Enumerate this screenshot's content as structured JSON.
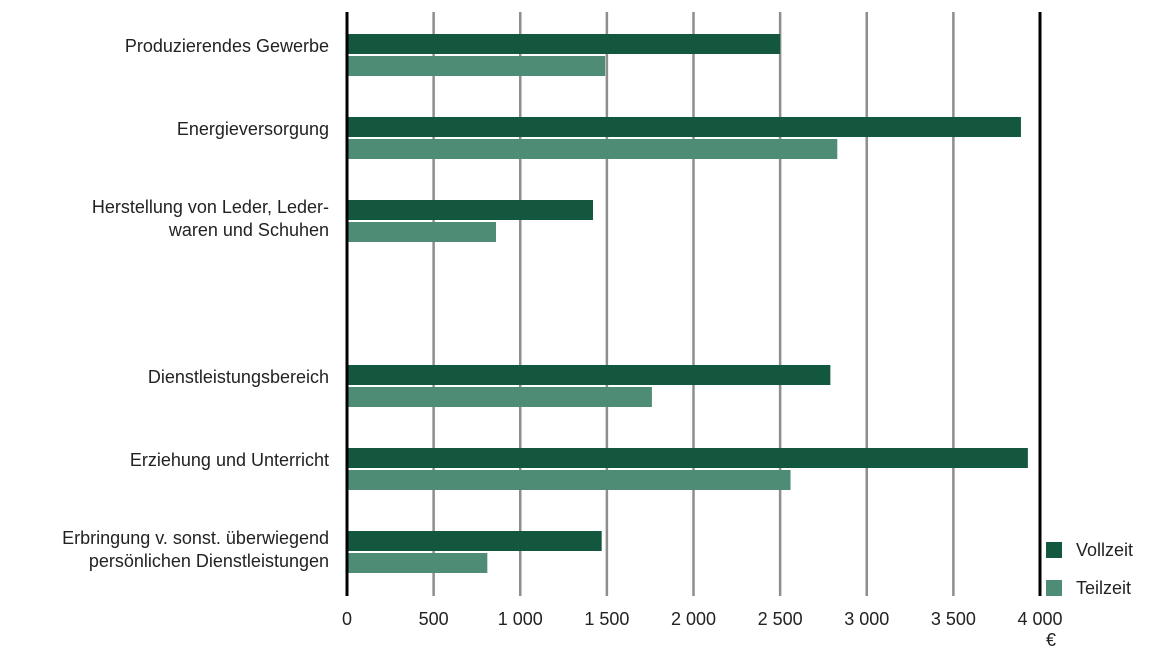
{
  "chart_data": {
    "type": "bar",
    "orientation": "horizontal",
    "categories": [
      "Produzierendes Gewerbe",
      "Energieversorgung",
      "Herstellung von Leder, Leder-\nwaren und Schuhen",
      "Dienstleistungsbereich",
      "Erziehung und Unterricht",
      "Erbringung v. sonst. überwiegend\npersönlichen Dienstleistungen"
    ],
    "series": [
      {
        "name": "Vollzeit",
        "color": "#14573f",
        "values": [
          2500,
          3890,
          1420,
          2790,
          3930,
          1470
        ]
      },
      {
        "name": "Teilzeit",
        "color": "#4e8c75",
        "values": [
          1490,
          2830,
          860,
          1760,
          2560,
          810
        ]
      }
    ],
    "xlim": [
      0,
      4000
    ],
    "x_ticks": [
      "0",
      "500",
      "1 000",
      "1 500",
      "2 000",
      "2 500",
      "3 000",
      "3 500",
      "4 000"
    ],
    "unit_label": "€",
    "grid": true,
    "legend_position": "bottom-right"
  }
}
